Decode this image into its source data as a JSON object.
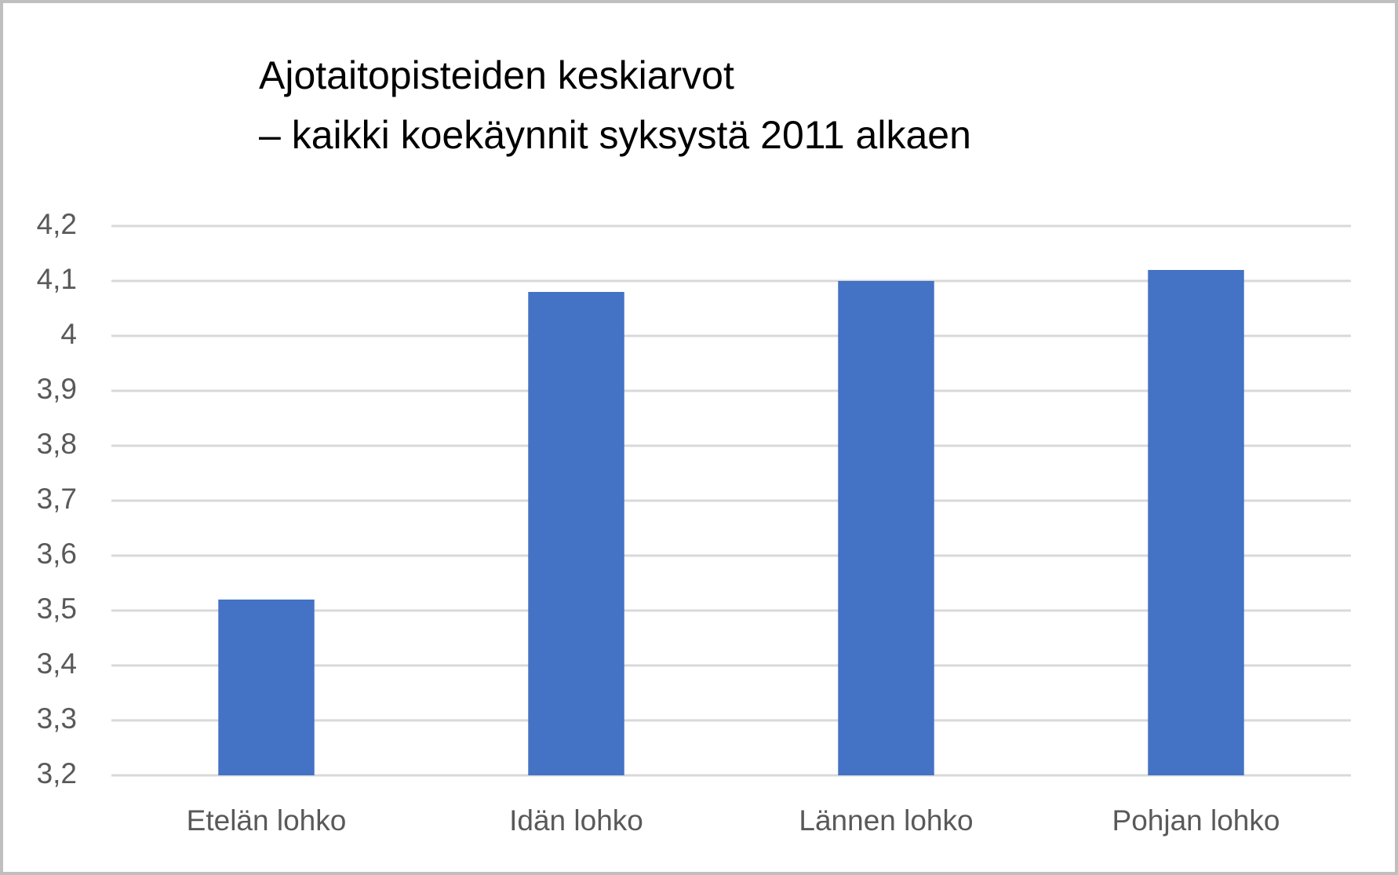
{
  "chart_data": {
    "type": "bar",
    "title": [
      "Ajotaitopisteiden keskiarvot",
      "– kaikki koekäynnit syksystä 2011 alkaen"
    ],
    "categories": [
      "Etelän lohko",
      "Idän lohko",
      "Lännen lohko",
      "Pohjan lohko"
    ],
    "values": [
      3.52,
      4.08,
      4.1,
      4.12
    ],
    "color": "#4472c4",
    "ylim": [
      3.2,
      4.2
    ],
    "yticks": [
      {
        "value": 3.2,
        "label": "3,2"
      },
      {
        "value": 3.3,
        "label": "3,3"
      },
      {
        "value": 3.4,
        "label": "3,4"
      },
      {
        "value": 3.5,
        "label": "3,5"
      },
      {
        "value": 3.6,
        "label": "3,6"
      },
      {
        "value": 3.7,
        "label": "3,7"
      },
      {
        "value": 3.8,
        "label": "3,8"
      },
      {
        "value": 3.9,
        "label": "3,9"
      },
      4,
      {
        "value": 4.1,
        "label": "4,1"
      },
      {
        "value": 4.2,
        "label": "4,2"
      }
    ],
    "grid": true
  }
}
